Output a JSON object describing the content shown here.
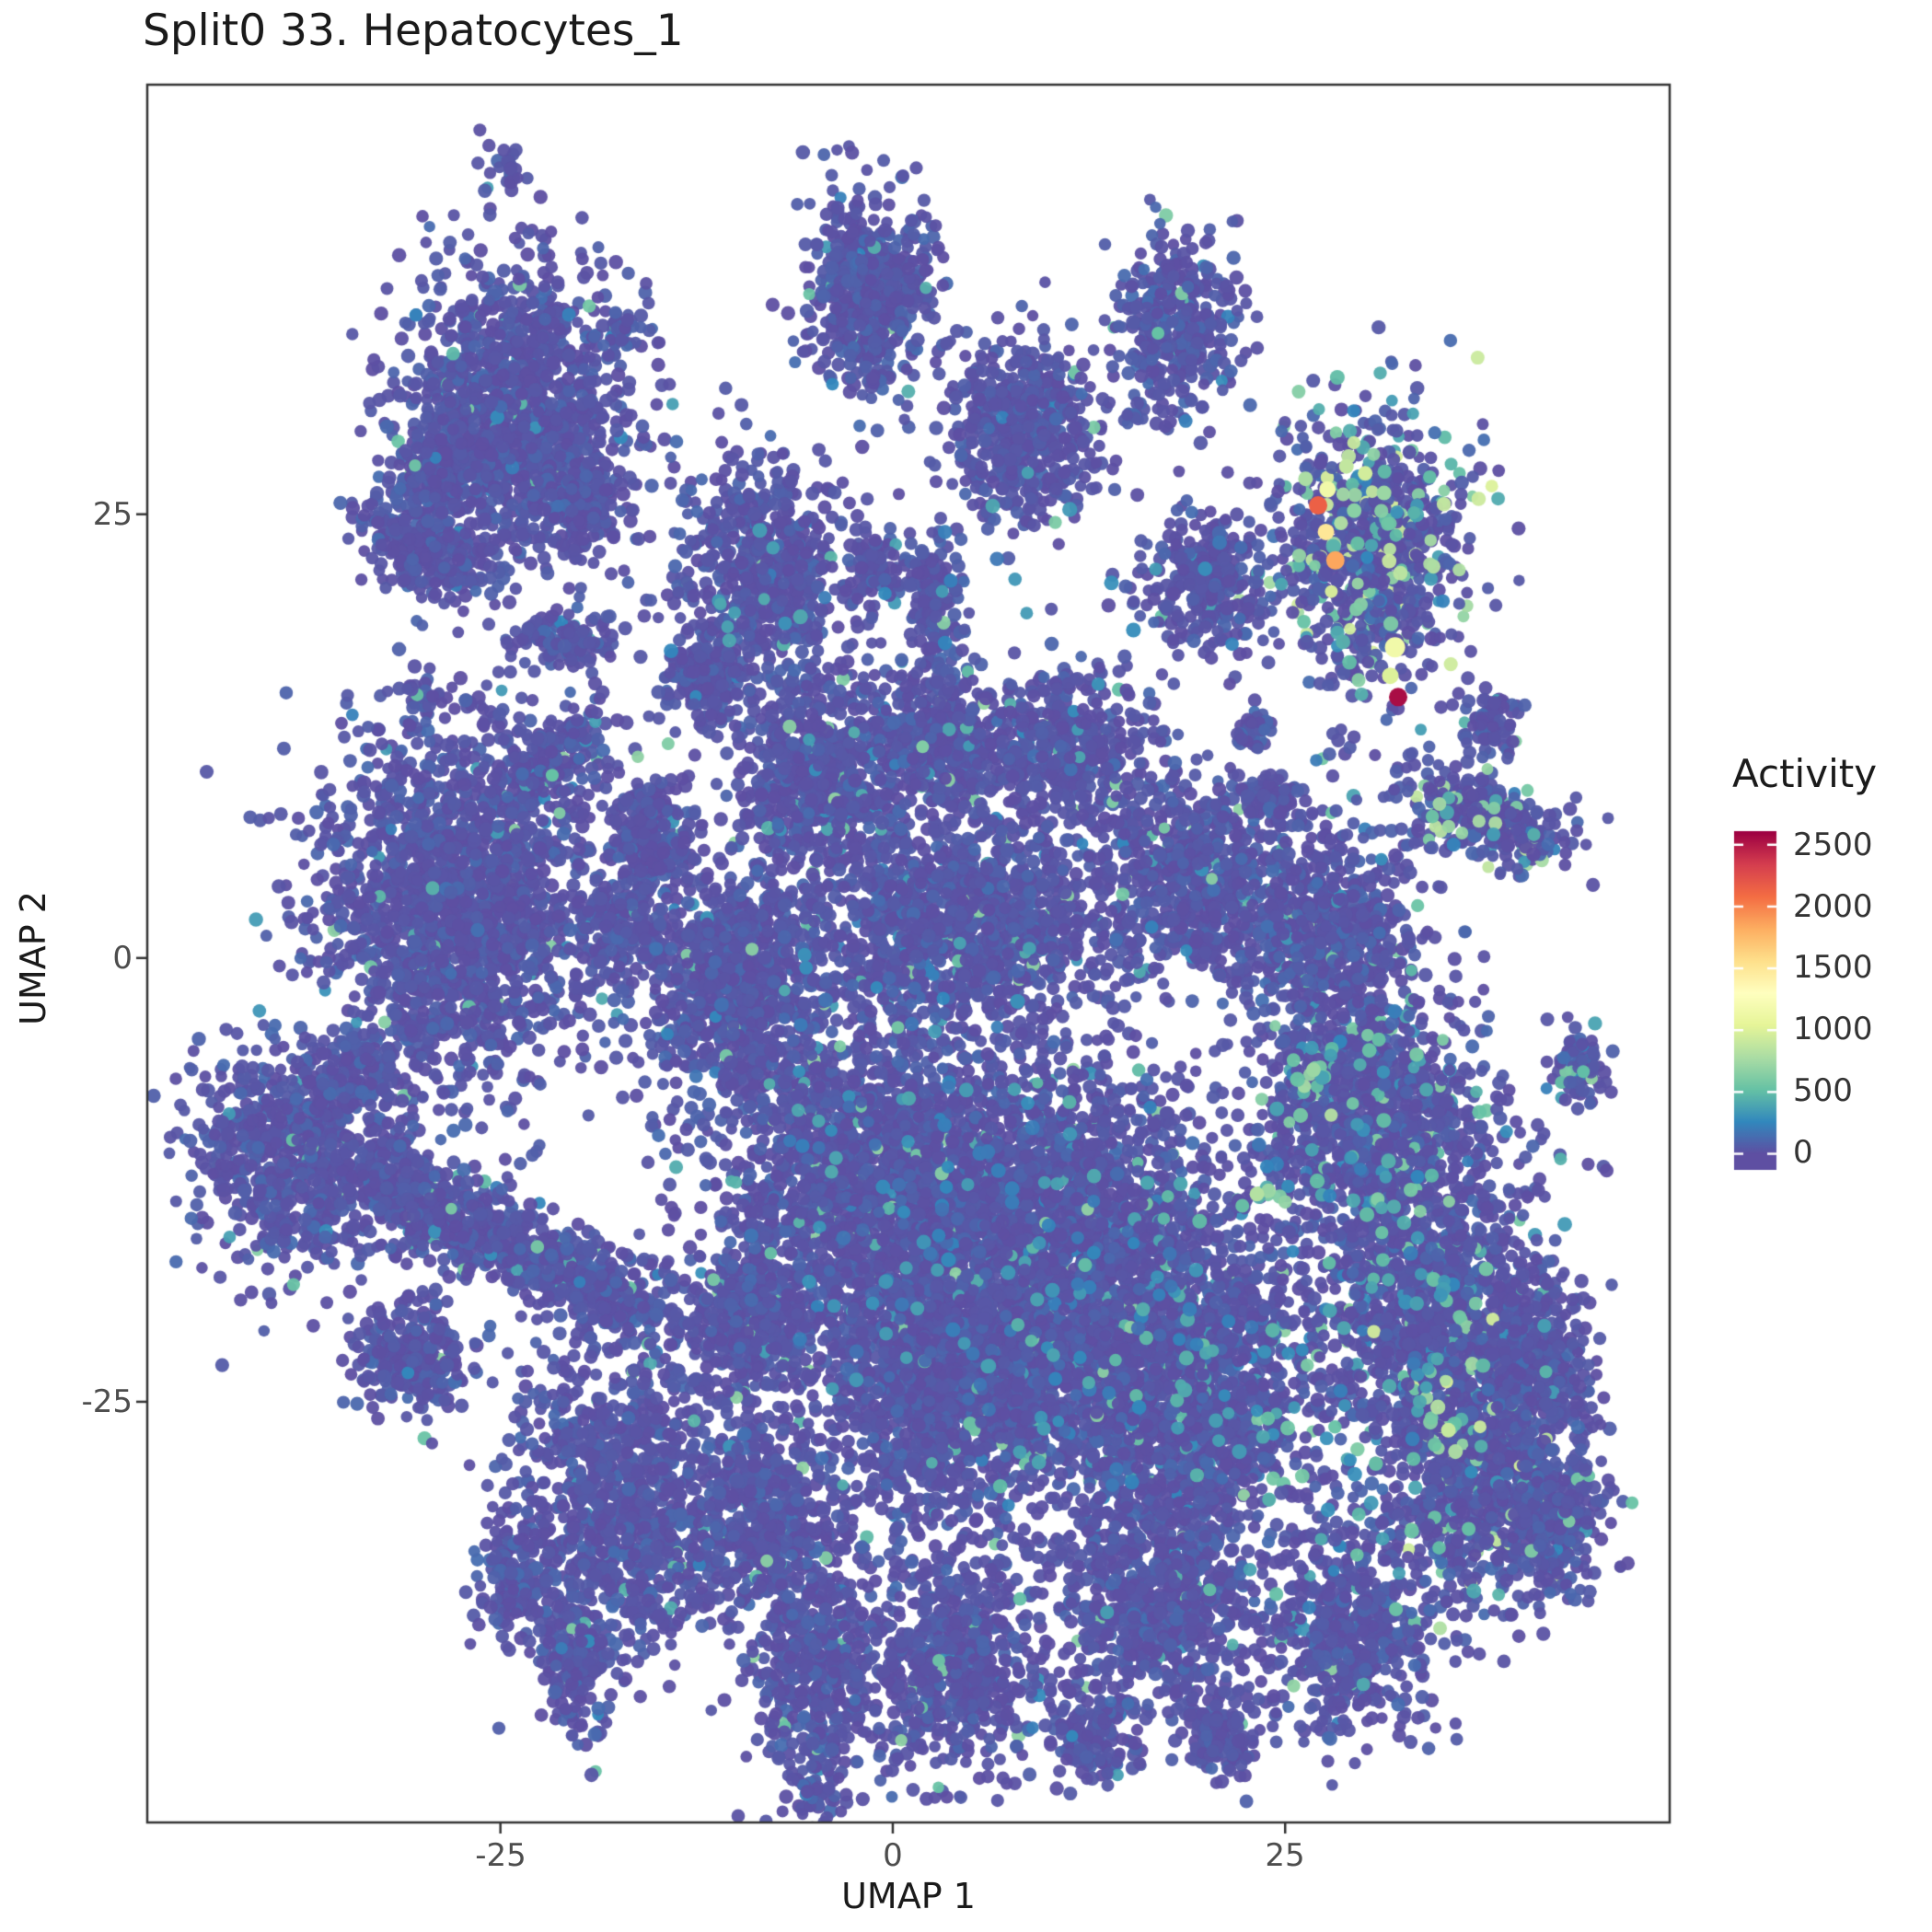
{
  "title": "Split0 33. Hepatocytes_1",
  "axes": {
    "x_label": "UMAP 1",
    "y_label": "UMAP 2",
    "x_ticks": [
      -25,
      0,
      25
    ],
    "y_ticks": [
      25,
      0,
      -25
    ],
    "x_tick_labels": [
      "-25",
      "0",
      "25"
    ],
    "y_tick_labels": [
      "25",
      "0",
      "-25"
    ]
  },
  "legend": {
    "title": "Activity",
    "ticks": [
      2500,
      2000,
      1500,
      1000,
      500,
      0
    ],
    "tick_labels": [
      "2500",
      "2000",
      "1500",
      "1000",
      "500",
      "0"
    ]
  },
  "colors": {
    "background": "#FFFFFF",
    "panel_border": "#333333",
    "title_text": "#1A1A1A",
    "tick_text": "#4D4D4D",
    "colormap_stops": [
      [
        0,
        "#5E4FA2"
      ],
      [
        260,
        "#3288BD"
      ],
      [
        520,
        "#66C2A5"
      ],
      [
        780,
        "#ABDDA4"
      ],
      [
        1040,
        "#E6F598"
      ],
      [
        1300,
        "#FFFFBF"
      ],
      [
        1560,
        "#FEE08B"
      ],
      [
        1820,
        "#FDAE61"
      ],
      [
        2080,
        "#F46D43"
      ],
      [
        2340,
        "#D53E4F"
      ],
      [
        2600,
        "#9E0142"
      ]
    ]
  },
  "chart_data": {
    "type": "scatter",
    "title": "Split0 33. Hepatocytes_1",
    "xlabel": "UMAP 1",
    "ylabel": "UMAP 2",
    "xlim": [
      -47.5,
      49.5
    ],
    "ylim": [
      -48.7,
      49.2
    ],
    "x_ticks": [
      -25,
      0,
      25
    ],
    "y_ticks": [
      25,
      0,
      -25
    ],
    "legend_title": "Activity",
    "activity_range": [
      0,
      2600
    ],
    "colormap": "spectral_reversed",
    "grid": false,
    "legend_position": "right",
    "clusters": [
      {
        "x": -24.4,
        "y": 44.4,
        "sx": 0.9,
        "sy": 0.8,
        "n": 25
      },
      {
        "x": -1.5,
        "y": 37.5,
        "sx": 2.0,
        "sy": 2.8,
        "n": 550
      },
      {
        "x": 18.0,
        "y": 35.6,
        "sx": 1.8,
        "sy": 2.4,
        "n": 380
      },
      {
        "x": -24.2,
        "y": 30.8,
        "sx": 3.6,
        "sy": 4.2,
        "n": 1300
      },
      {
        "x": -29.8,
        "y": 23.0,
        "sx": 2.2,
        "sy": 1.2,
        "rot": -0.5,
        "n": 260
      },
      {
        "x": -20.0,
        "y": 25.5,
        "sx": 1.5,
        "sy": 1.3,
        "n": 150
      },
      {
        "x": -28.5,
        "y": 27.5,
        "sx": 1.6,
        "sy": 1.4,
        "n": 200
      },
      {
        "x": -17.4,
        "y": 35.3,
        "sx": 0.7,
        "sy": 0.6,
        "n": 40
      },
      {
        "x": 8.3,
        "y": 29.6,
        "sx": 2.3,
        "sy": 2.5,
        "n": 500
      },
      {
        "x": 30.3,
        "y": 23.0,
        "sx": 3.0,
        "sy": 4.0,
        "n": 850,
        "pm": 0.16,
        "am": 1000
      },
      {
        "x": 19.8,
        "y": 21.2,
        "sx": 1.9,
        "sy": 2.1,
        "n": 320
      },
      {
        "x": -8.4,
        "y": 21.6,
        "sx": 2.9,
        "sy": 3.3,
        "n": 650
      },
      {
        "x": -21.0,
        "y": 18.0,
        "sx": 1.6,
        "sy": 0.8,
        "n": 130
      },
      {
        "x": -21.6,
        "y": 11.2,
        "sx": 2.0,
        "sy": 1.0,
        "rot": 0.5,
        "n": 170,
        "pm": 0.06
      },
      {
        "x": -12.0,
        "y": 15.8,
        "sx": 1.3,
        "sy": 1.3,
        "n": 160
      },
      {
        "x": -1.0,
        "y": 22.0,
        "sx": 1.0,
        "sy": 1.0,
        "n": 90
      },
      {
        "x": 2.6,
        "y": 20.0,
        "sx": 0.8,
        "sy": 2.4,
        "n": 150
      },
      {
        "x": -27.8,
        "y": 2.9,
        "sx": 4.3,
        "sy": 5.2,
        "n": 1900
      },
      {
        "x": -33.8,
        "y": -6.2,
        "sx": 1.2,
        "sy": 1.0,
        "n": 90
      },
      {
        "x": -38.2,
        "y": -10.8,
        "sx": 3.6,
        "sy": 3.4,
        "n": 800
      },
      {
        "x": -28.0,
        "y": -14.5,
        "sx": 4.0,
        "sy": 1.3,
        "rot": -0.35,
        "n": 550
      },
      {
        "x": -19.0,
        "y": -18.5,
        "sx": 3.0,
        "sy": 1.2,
        "rot": -0.35,
        "n": 350
      },
      {
        "x": -30.5,
        "y": -22.4,
        "sx": 1.7,
        "sy": 1.5,
        "n": 260
      },
      {
        "x": -17.5,
        "y": -30.4,
        "sx": 3.2,
        "sy": 4.6,
        "n": 1000
      },
      {
        "x": -20.3,
        "y": -40.0,
        "sx": 1.0,
        "sy": 2.2,
        "n": 170
      },
      {
        "x": -4.8,
        "y": -40.3,
        "sx": 2.0,
        "sy": 3.4,
        "n": 450
      },
      {
        "x": -4.9,
        "y": -47.0,
        "sx": 0.8,
        "sy": 0.7,
        "n": 35
      },
      {
        "x": -5.2,
        "y": 10.4,
        "sx": 2.2,
        "sy": 2.8,
        "n": 600,
        "pm": 0.05
      },
      {
        "x": 2.5,
        "y": 12.0,
        "sx": 2.4,
        "sy": 2.2,
        "n": 500,
        "pm": 0.05
      },
      {
        "x": 11.0,
        "y": 12.0,
        "sx": 2.6,
        "sy": 2.0,
        "n": 450
      },
      {
        "x": -10.0,
        "y": -1.2,
        "sx": 3.0,
        "sy": 3.6,
        "n": 900
      },
      {
        "x": 4.5,
        "y": 2.0,
        "sx": 5.0,
        "sy": 3.0,
        "n": 1300,
        "pm": 0.05
      },
      {
        "x": 18.8,
        "y": 4.8,
        "sx": 2.8,
        "sy": 2.6,
        "n": 600
      },
      {
        "x": 27.5,
        "y": 1.5,
        "sx": 3.0,
        "sy": 3.0,
        "n": 700,
        "pm": 0.06
      },
      {
        "x": -1.5,
        "y": -12.5,
        "sx": 5.0,
        "sy": 4.6,
        "n": 1800,
        "pm": 0.05
      },
      {
        "x": 10.5,
        "y": -16.0,
        "sx": 5.6,
        "sy": 5.2,
        "n": 2300,
        "pm": 0.06
      },
      {
        "x": 18.3,
        "y": -24.5,
        "sx": 4.6,
        "sy": 4.4,
        "n": 1600,
        "pm": 0.06
      },
      {
        "x": 3.5,
        "y": -24.5,
        "sx": 4.6,
        "sy": 3.8,
        "n": 1300,
        "pm": 0.04
      },
      {
        "x": -8.4,
        "y": -31.8,
        "sx": 2.6,
        "sy": 3.0,
        "n": 550
      },
      {
        "x": 30.3,
        "y": -9.0,
        "sx": 3.6,
        "sy": 3.6,
        "n": 1000,
        "pm": 0.08
      },
      {
        "x": 34.3,
        "y": -19.5,
        "sx": 3.6,
        "sy": 4.4,
        "n": 1200,
        "pm": 0.08
      },
      {
        "x": 37.4,
        "y": -28.7,
        "sx": 3.2,
        "sy": 3.6,
        "n": 850,
        "pm": 0.1,
        "am": 1000
      },
      {
        "x": 29.1,
        "y": -37.8,
        "sx": 2.6,
        "sy": 3.0,
        "n": 550
      },
      {
        "x": 16.8,
        "y": -36.4,
        "sx": 3.2,
        "sy": 3.4,
        "n": 750
      },
      {
        "x": 3.7,
        "y": -39.6,
        "sx": 2.8,
        "sy": 3.2,
        "n": 650
      },
      {
        "x": 38.0,
        "y": 13.2,
        "sx": 0.9,
        "sy": 0.9,
        "n": 80
      },
      {
        "x": 37.8,
        "y": 8.0,
        "sx": 2.6,
        "sy": 1.2,
        "rot": -0.3,
        "n": 320,
        "pm": 0.14,
        "am": 900
      },
      {
        "x": 23.3,
        "y": 12.8,
        "sx": 0.6,
        "sy": 0.5,
        "n": 30
      },
      {
        "x": 24.4,
        "y": 9.0,
        "sx": 1.0,
        "sy": 0.7,
        "n": 70
      },
      {
        "x": 43.8,
        "y": -6.2,
        "sx": 1.0,
        "sy": 1.1,
        "n": 90,
        "pm": 0.08
      },
      {
        "x": -15.5,
        "y": 7.0,
        "sx": 1.4,
        "sy": 1.6,
        "n": 220
      },
      {
        "x": -17.0,
        "y": 1.5,
        "sx": 1.2,
        "sy": 1.5,
        "n": 170
      },
      {
        "x": -9.3,
        "y": -20.4,
        "sx": 2.2,
        "sy": 2.2,
        "n": 400
      },
      {
        "x": 42.0,
        "y": -32.0,
        "sx": 1.6,
        "sy": 2.0,
        "n": 250
      },
      {
        "x": 41.0,
        "y": -22.5,
        "sx": 1.8,
        "sy": 2.2,
        "n": 300
      },
      {
        "x": 21.0,
        "y": -44.0,
        "sx": 1.2,
        "sy": 1.4,
        "n": 120
      },
      {
        "x": 12.5,
        "y": -44.0,
        "sx": 1.4,
        "sy": 1.2,
        "n": 130
      },
      {
        "x": -24.0,
        "y": -35.0,
        "sx": 1.2,
        "sy": 1.8,
        "n": 150
      },
      {
        "x": -30.0,
        "y": 14.7,
        "sx": 0.6,
        "sy": 0.5,
        "n": 25
      },
      {
        "x": -1.1,
        "y": 32.6,
        "sx": 0.4,
        "sy": 0.4,
        "n": 12
      },
      {
        "x": 15.5,
        "y": 30.6,
        "sx": 0.4,
        "sy": 0.4,
        "n": 10
      }
    ],
    "sprinkles": [
      {
        "x": 30.2,
        "y": 24.2,
        "sx": 2.6,
        "sy": 3.4,
        "n": 50,
        "a0": 250,
        "a1": 950
      },
      {
        "x": 26.6,
        "y": -6.6,
        "sx": 1.6,
        "sy": 1.1,
        "n": 14,
        "a0": 350,
        "a1": 850
      },
      {
        "x": 23.6,
        "y": -13.9,
        "sx": 1.3,
        "sy": 0.9,
        "n": 9,
        "a0": 400,
        "a1": 850
      },
      {
        "x": 35.2,
        "y": -26.6,
        "sx": 1.6,
        "sy": 1.6,
        "n": 12,
        "a0": 350,
        "a1": 950
      },
      {
        "x": 31.2,
        "y": -14.2,
        "sx": 1.4,
        "sy": 1.4,
        "n": 10,
        "a0": 300,
        "a1": 650
      },
      {
        "x": 17.0,
        "y": -20.0,
        "sx": 6.5,
        "sy": 5.5,
        "n": 80,
        "a0": 180,
        "a1": 520
      },
      {
        "x": 1.0,
        "y": -14.0,
        "sx": 8.0,
        "sy": 7.5,
        "n": 80,
        "a0": 150,
        "a1": 420
      },
      {
        "x": 37.8,
        "y": 8.1,
        "sx": 2.0,
        "sy": 0.9,
        "n": 12,
        "a0": 350,
        "a1": 850
      },
      {
        "x": -8.0,
        "y": 20.5,
        "sx": 2.5,
        "sy": 2.5,
        "n": 12,
        "a0": 180,
        "a1": 420
      },
      {
        "x": 30.0,
        "y": -30.0,
        "sx": 4.0,
        "sy": 4.0,
        "n": 30,
        "a0": 200,
        "a1": 600
      },
      {
        "x": 34.0,
        "y": -19.0,
        "sx": 3.0,
        "sy": 3.5,
        "n": 25,
        "a0": 200,
        "a1": 600
      },
      {
        "x": 30.0,
        "y": -9.0,
        "sx": 3.0,
        "sy": 3.0,
        "n": 20,
        "a0": 200,
        "a1": 600
      },
      {
        "x": 12.0,
        "y": 22.0,
        "sx": 8.0,
        "sy": 3.0,
        "n": 15,
        "a0": 150,
        "a1": 400
      }
    ],
    "hotspots": [
      {
        "x": 16.9,
        "y": 35.2,
        "a": 520,
        "r": 7
      },
      {
        "x": -21.7,
        "y": 10.3,
        "a": 520,
        "r": 7
      },
      {
        "x": 1.9,
        "y": 11.9,
        "a": 620,
        "r": 7
      },
      {
        "x": 44.0,
        "y": -6.4,
        "a": 500,
        "r": 7
      },
      {
        "x": 26.8,
        "y": -6.3,
        "a": 720,
        "r": 8
      },
      {
        "x": 23.2,
        "y": -13.3,
        "a": 820,
        "r": 8
      },
      {
        "x": 35.4,
        "y": -26.6,
        "a": 900,
        "r": 8
      },
      {
        "x": 29.4,
        "y": 25.2,
        "a": 650,
        "r": 8
      },
      {
        "x": 26.3,
        "y": 27.0,
        "a": 780,
        "r": 8
      },
      {
        "x": 28.9,
        "y": 27.7,
        "a": 880,
        "r": 8
      },
      {
        "x": 30.1,
        "y": 27.3,
        "a": 950,
        "r": 8
      },
      {
        "x": 31.3,
        "y": 26.2,
        "a": 720,
        "r": 8
      },
      {
        "x": 27.7,
        "y": 26.4,
        "a": 1150,
        "r": 9
      },
      {
        "x": 31.7,
        "y": 15.9,
        "a": 1000,
        "r": 9
      },
      {
        "x": 32.0,
        "y": 17.5,
        "a": 1150,
        "r": 11
      },
      {
        "x": 27.6,
        "y": 24.0,
        "a": 1500,
        "r": 9
      },
      {
        "x": 28.2,
        "y": 22.4,
        "a": 1850,
        "r": 10
      },
      {
        "x": 27.1,
        "y": 25.5,
        "a": 2150,
        "r": 10
      },
      {
        "x": 32.2,
        "y": 14.7,
        "a": 2550,
        "r": 10
      }
    ]
  }
}
